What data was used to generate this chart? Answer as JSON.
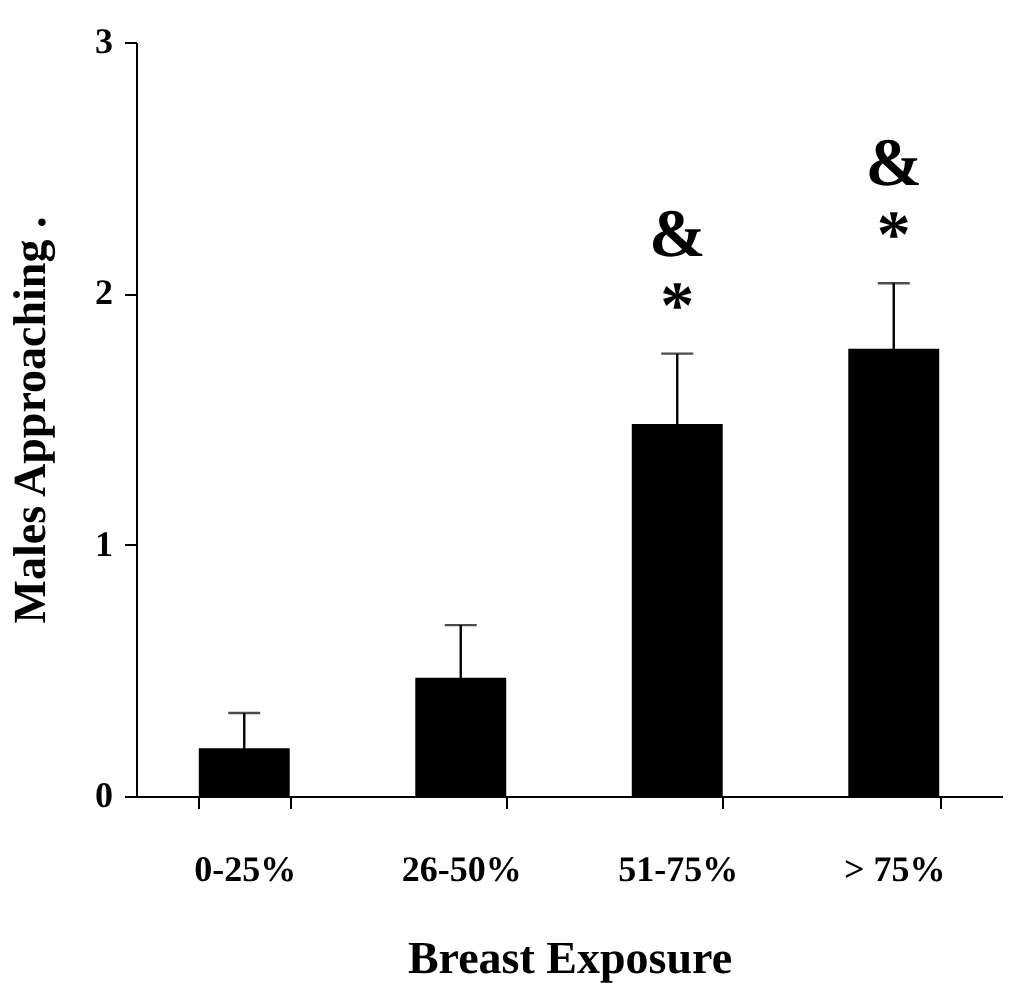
{
  "chart_data": {
    "type": "bar",
    "xlabel": "Breast Exposure",
    "ylabel": "Males Approaching  .",
    "categories": [
      "0-25%",
      "26-50%",
      "51-75%",
      "> 75%"
    ],
    "values": [
      0.19,
      0.47,
      1.48,
      1.78
    ],
    "errors": [
      0.14,
      0.21,
      0.28,
      0.26
    ],
    "color": "#000000",
    "ylim": [
      0,
      3
    ],
    "yticks": [
      0,
      1,
      2,
      3
    ],
    "grid": false,
    "annotations": [
      "&",
      "*",
      "&",
      "*"
    ]
  }
}
